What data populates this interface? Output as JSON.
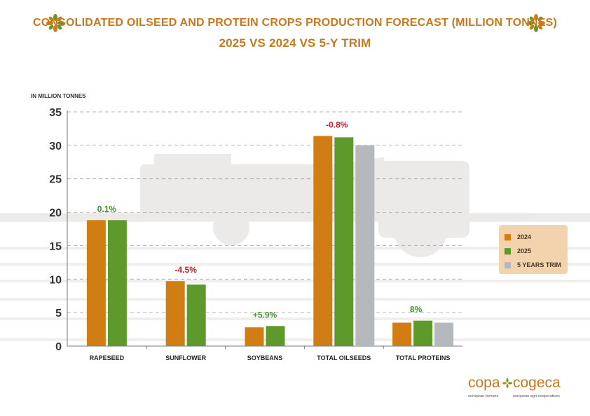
{
  "title": {
    "line1": "CONSOLIDATED OILSEED AND PROTEIN CROPS PRODUCTION FORECAST (MILLION TONNES)",
    "line2": "2025 VS 2024 VS 5-Y TRIM"
  },
  "colors": {
    "c2024": "#d27d13",
    "c2025": "#5e9a2b",
    "ctrim": "#b5b8bc",
    "positive": "#3d9a2a",
    "negative": "#b8202a",
    "title": "#c8781c",
    "legend_bg": "#f2d3ad"
  },
  "legend": {
    "items": [
      {
        "label": "2024",
        "color": "#d27d13"
      },
      {
        "label": "2025",
        "color": "#5e9a2b"
      },
      {
        "label": "5 YEARS TRIM",
        "color": "#b5b8bc"
      }
    ]
  },
  "logo": {
    "left_word": "copa",
    "right_word": "cogeca",
    "left_sub": "european farmers",
    "right_sub": "european agri-cooperatives"
  },
  "chart_data": {
    "type": "bar",
    "ylabel": "IN MILLION TONNES",
    "ylim": [
      0,
      35
    ],
    "yticks": [
      0,
      5,
      10,
      15,
      20,
      25,
      30,
      35
    ],
    "grid": true,
    "legend_position": "right",
    "categories": [
      "RAPESEED",
      "SUNFLOWER",
      "SOYBEANS",
      "TOTAL OILSEEDS",
      "TOTAL PROTEINS"
    ],
    "series": [
      {
        "name": "2024",
        "values": [
          18.8,
          9.7,
          2.8,
          31.4,
          3.5
        ]
      },
      {
        "name": "2025",
        "values": [
          18.8,
          9.2,
          3.0,
          31.2,
          3.8
        ]
      },
      {
        "name": "5 YEARS TRIM",
        "values": [
          null,
          null,
          null,
          30.0,
          3.5
        ]
      }
    ],
    "change_labels": [
      "0.1%",
      "-4.5%",
      "+5.9%",
      "-0.8%",
      "8%"
    ],
    "change_signs": [
      "positive",
      "negative",
      "positive",
      "negative",
      "positive"
    ]
  }
}
